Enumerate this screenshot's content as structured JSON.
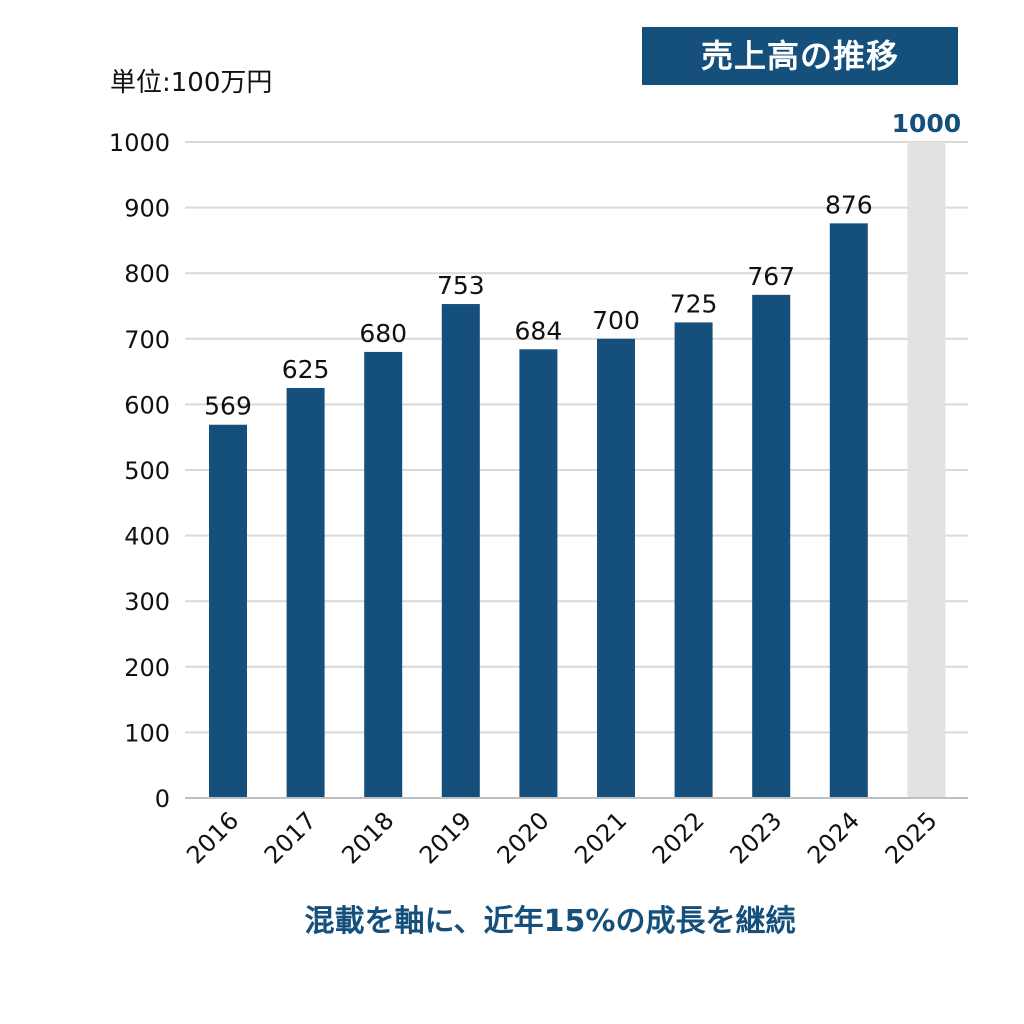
{
  "chart_data": {
    "type": "bar",
    "title": "売上高の推移",
    "unit": "単位:100万円",
    "subtitle": "混載を軸に、近年15%の成長を継続",
    "categories": [
      "2016",
      "2017",
      "2018",
      "2019",
      "2020",
      "2021",
      "2022",
      "2023",
      "2024",
      "2025"
    ],
    "values": [
      569,
      625,
      680,
      753,
      684,
      700,
      725,
      767,
      876,
      1000
    ],
    "value_labels": [
      "569",
      "625",
      "680",
      "753",
      "684",
      "700",
      "725",
      "767",
      "876",
      "1000"
    ],
    "ylim": [
      0,
      1000
    ],
    "yticks": [
      "0",
      "100",
      "200",
      "300",
      "400",
      "500",
      "600",
      "700",
      "800",
      "900",
      "1000"
    ],
    "grid": true,
    "target_category": "2025",
    "colors": {
      "bar": "#15507c",
      "target_bar": "#e2e2e2",
      "grid": "#d9d9d9",
      "target_label": "#15507c"
    }
  }
}
